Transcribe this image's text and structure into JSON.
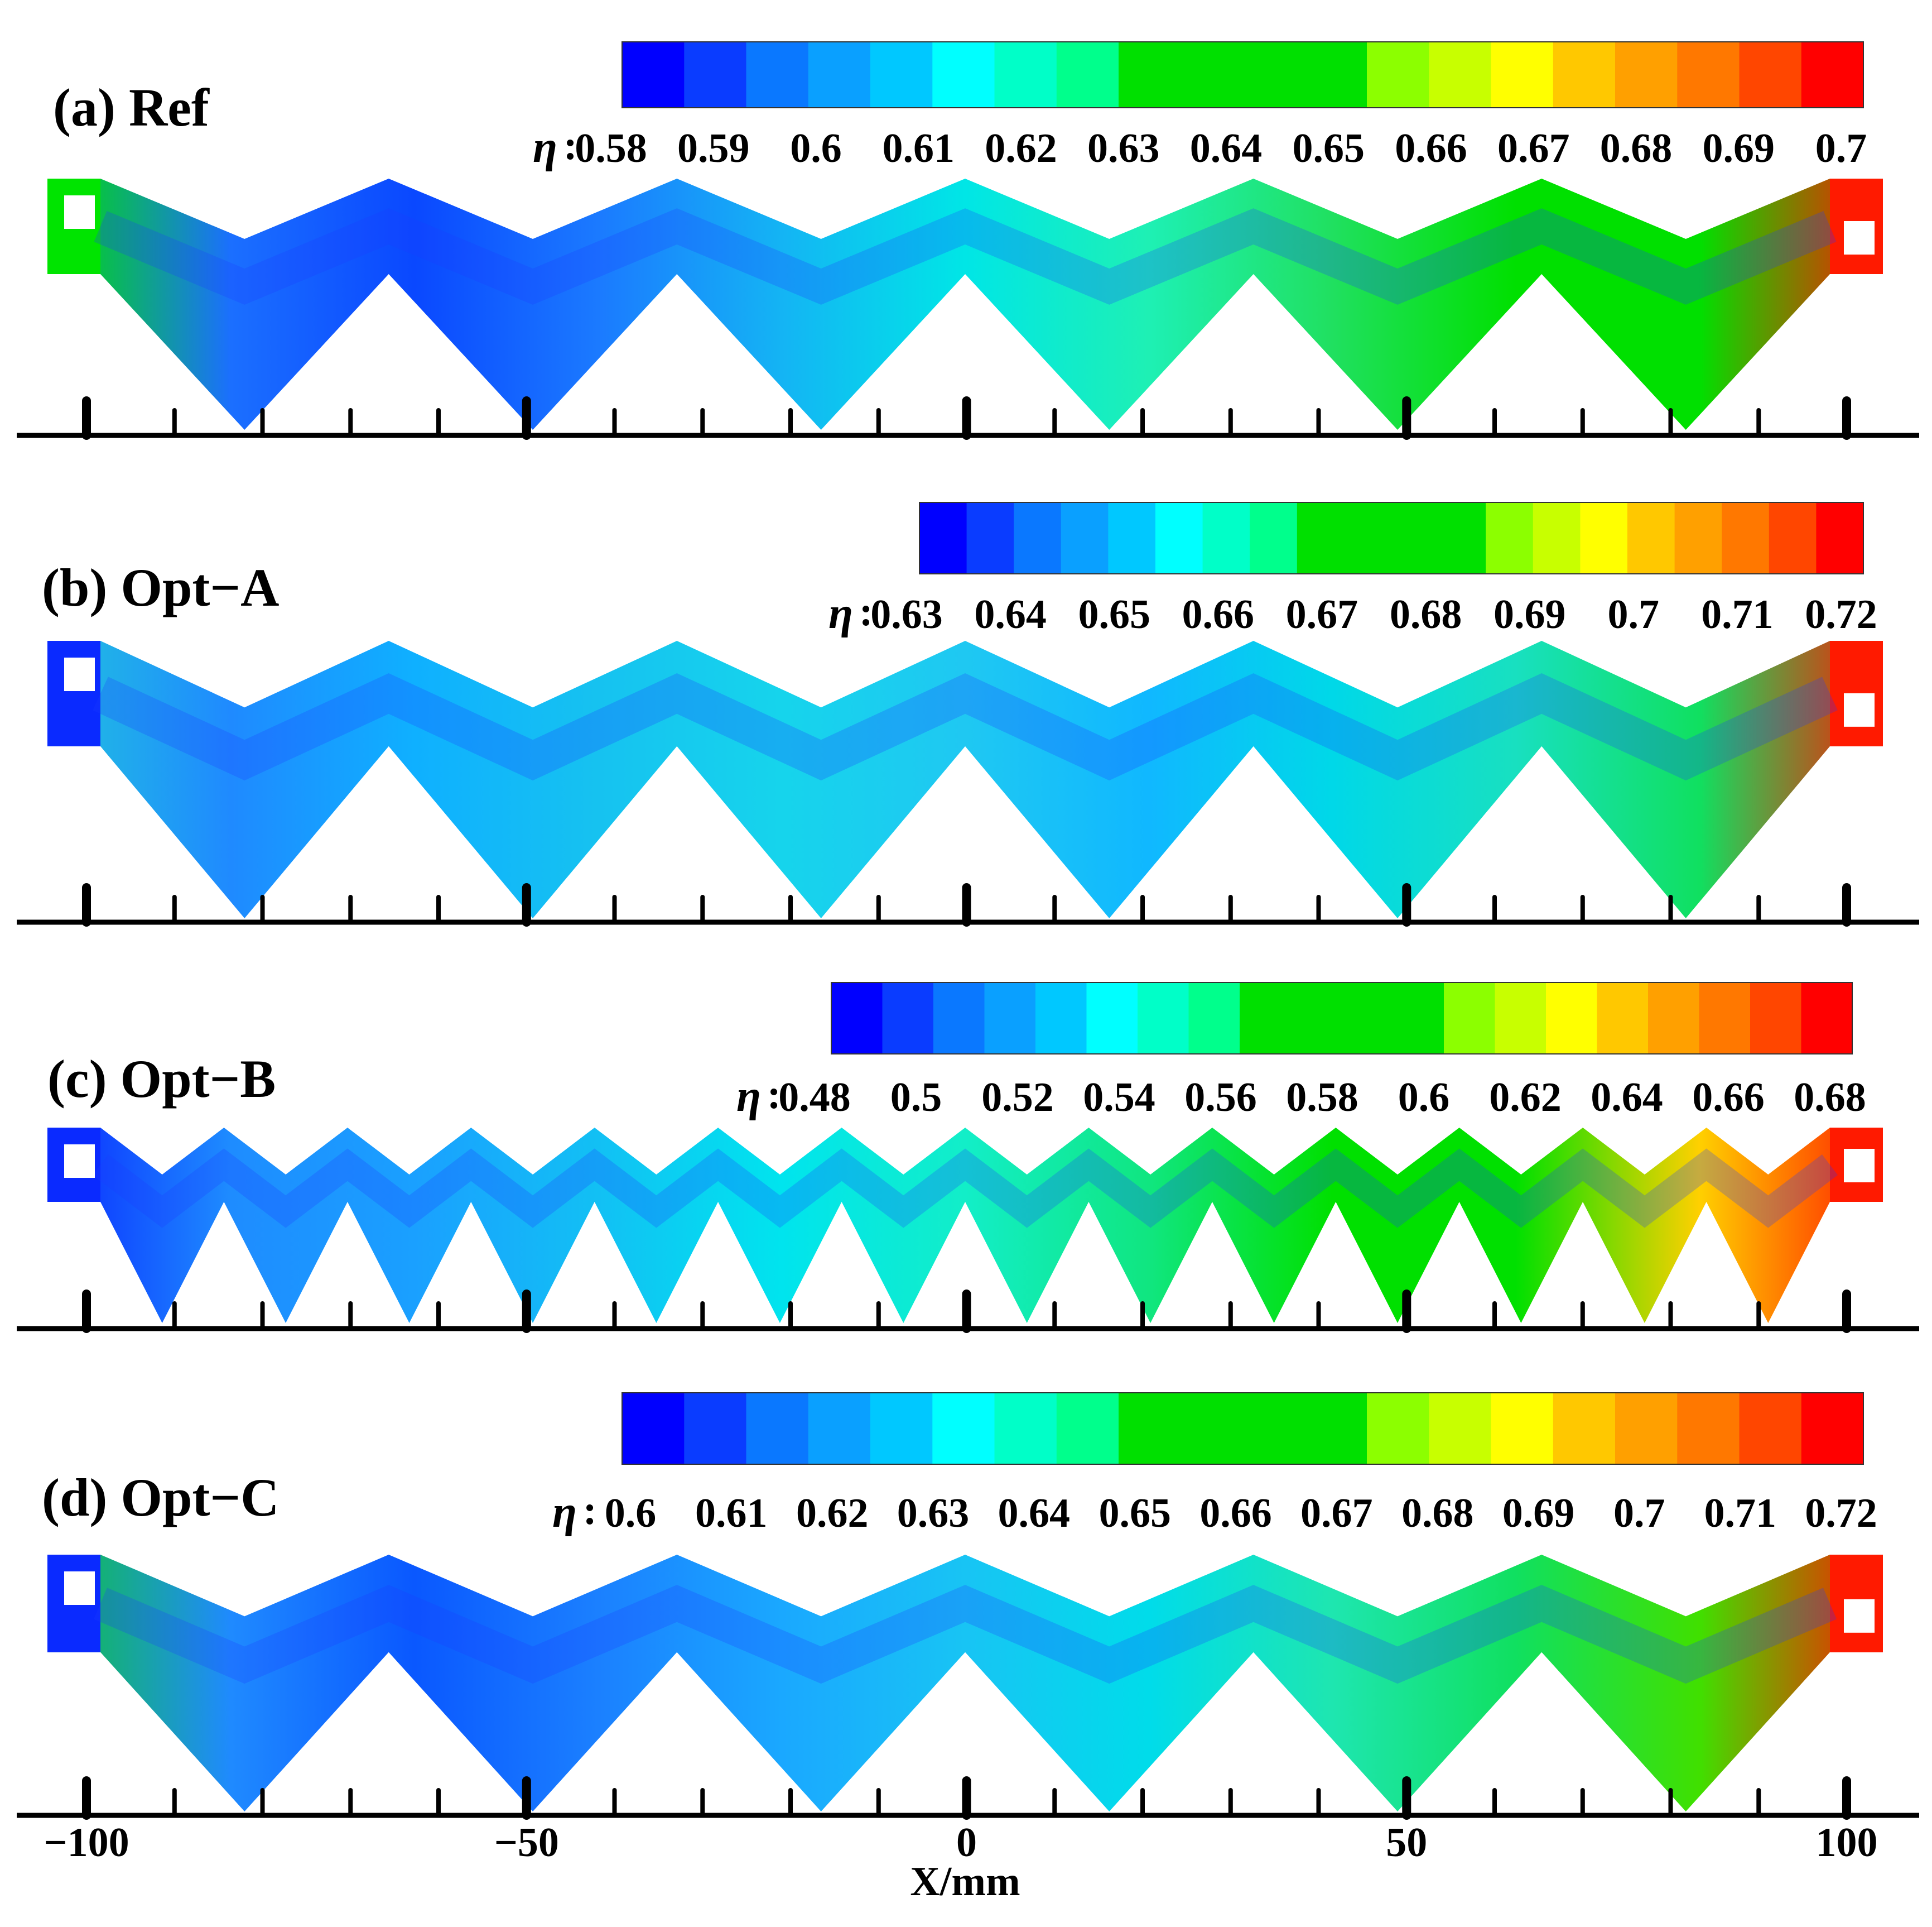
{
  "figure": {
    "panels": [
      {
        "id": "a",
        "title": "(a) Ref",
        "variable_symbol": "η",
        "colorbar_ticks": [
          "0.58",
          "0.59",
          "0.6",
          "0.61",
          "0.62",
          "0.63",
          "0.64",
          "0.65",
          "0.66",
          "0.67",
          "0.68",
          "0.69",
          "0.7"
        ],
        "teeth": 6,
        "low_color_zone": "middle teeth, blue",
        "inlet_color": "#00e400",
        "outlet_color": "#ff1a00",
        "band_stops": [
          "#00e000",
          "#1b6fff",
          "#0a48ff",
          "#1b7aff",
          "#14b4f4",
          "#00e6e6",
          "#1ef0b4",
          "#20e060",
          "#00e000",
          "#00e000",
          "#ff1a00"
        ]
      },
      {
        "id": "b",
        "title": "(b) Opt−A",
        "variable_symbol": "η",
        "colorbar_ticks": [
          "0.63",
          "0.64",
          "0.65",
          "0.66",
          "0.67",
          "0.68",
          "0.69",
          "0.7",
          "0.71",
          "0.72"
        ],
        "teeth": 6,
        "inlet_color": "#0a2aff",
        "outlet_color": "#ff1a00",
        "band_stops": [
          "#20c0e0",
          "#1f8aff",
          "#0fb0ff",
          "#16c2f0",
          "#16d4ec",
          "#1fc8f2",
          "#10b8ff",
          "#00d8e8",
          "#18e0c0",
          "#10e060",
          "#ff1a00"
        ]
      },
      {
        "id": "c",
        "title": "(c) Opt−B",
        "variable_symbol": "η",
        "colorbar_ticks": [
          "0.48",
          "0.5",
          "0.52",
          "0.54",
          "0.56",
          "0.58",
          "0.6",
          "0.62",
          "0.64",
          "0.66",
          "0.68"
        ],
        "teeth": 14,
        "inlet_color": "#0a2aff",
        "outlet_color": "#ff1a00",
        "band_stops": [
          "#0a2aff",
          "#1e8cff",
          "#1aa0ff",
          "#12c0f4",
          "#00e4ee",
          "#12eec8",
          "#10e680",
          "#00e000",
          "#00e000",
          "#ffd000",
          "#ff1a00"
        ]
      },
      {
        "id": "d",
        "title": "(d) Opt−C",
        "variable_symbol": "η",
        "colorbar_ticks": [
          "0.6",
          "0.61",
          "0.62",
          "0.63",
          "0.64",
          "0.65",
          "0.66",
          "0.67",
          "0.68",
          "0.69",
          "0.7",
          "0.71",
          "0.72"
        ],
        "teeth": 6,
        "inlet_color": "#0a2aff",
        "outlet_color": "#ff1a00",
        "band_stops": [
          "#10c040",
          "#1f8aff",
          "#0a58ff",
          "#1b80ff",
          "#1aa8ff",
          "#18c4f4",
          "#00dcea",
          "#1ee6b0",
          "#10e060",
          "#40e000",
          "#ff1a00"
        ]
      }
    ],
    "colormap": [
      "#0000ff",
      "#0a3cff",
      "#0a78ff",
      "#0aa0ff",
      "#00c8ff",
      "#00ffff",
      "#00ffc8",
      "#00ff8c",
      "#00e000",
      "#00e000",
      "#00e000",
      "#00e000",
      "#8cff00",
      "#c8ff00",
      "#ffff00",
      "#ffc800",
      "#ffa000",
      "#ff7800",
      "#ff4600",
      "#ff0000"
    ],
    "x_axis": {
      "label": "X/mm",
      "ticks": [
        "−100",
        "−50",
        "0",
        "50",
        "100"
      ],
      "range": [
        -100,
        100
      ],
      "major_step": 50,
      "minor_step": 10
    }
  }
}
